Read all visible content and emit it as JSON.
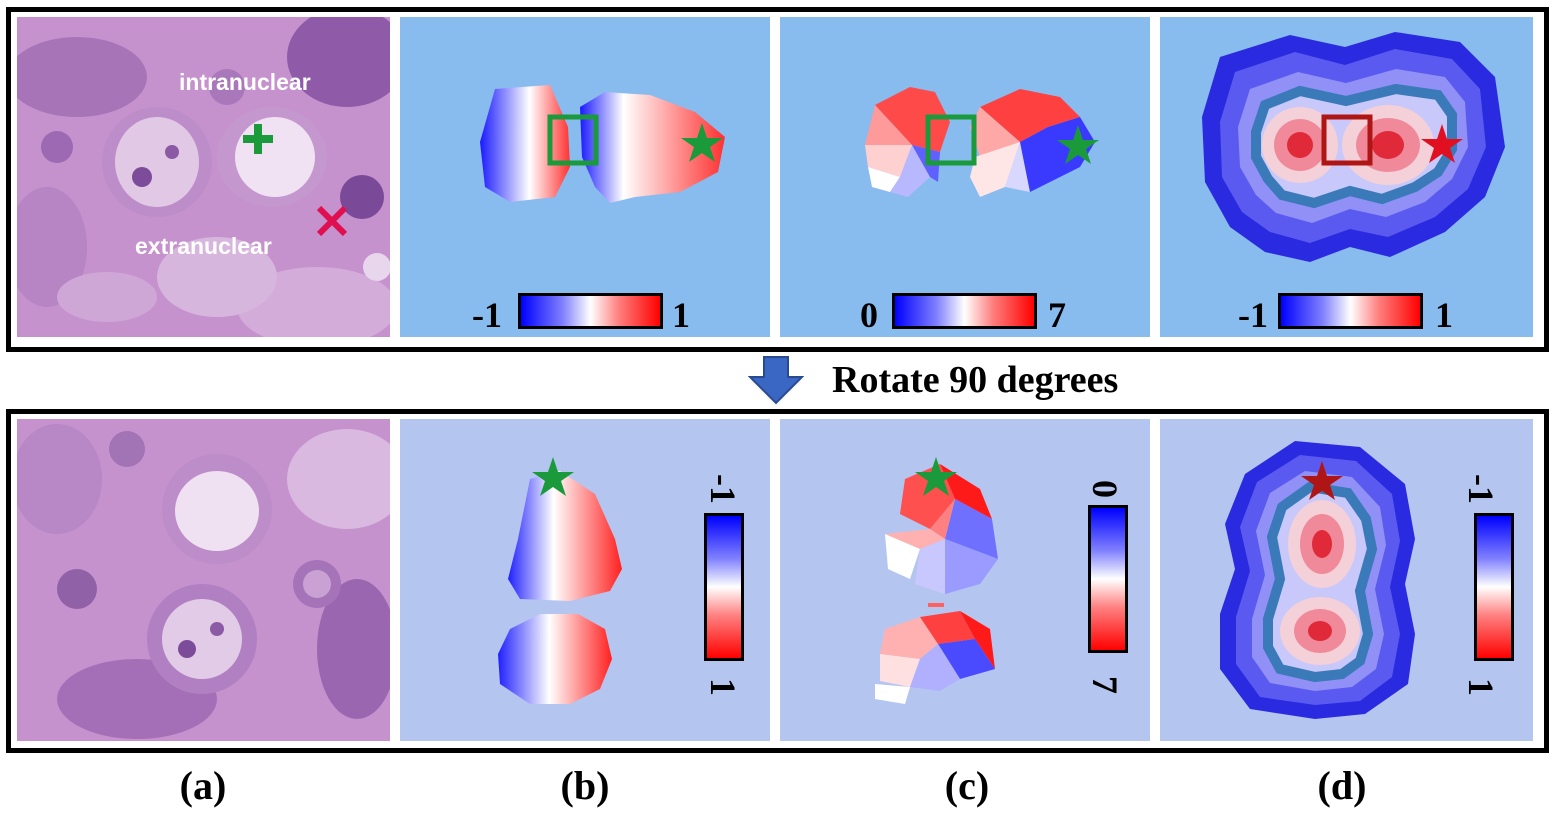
{
  "overlay": {
    "intranuclear": "intranuclear",
    "extranuclear": "extranuclear"
  },
  "top_row": {
    "b_colorbar": {
      "min": "-1",
      "max": "1"
    },
    "c_colorbar": {
      "min": "0",
      "max": "7"
    },
    "d_colorbar": {
      "min": "-1",
      "max": "1"
    }
  },
  "rotation": {
    "label": "Rotate 90 degrees"
  },
  "bottom_row": {
    "b_colorbar": {
      "min": "-1",
      "max": "1"
    },
    "c_colorbar": {
      "min": "0",
      "max": "7"
    },
    "d_colorbar": {
      "min": "-1",
      "max": "1"
    }
  },
  "panel_labels": [
    "(a)",
    "(b)",
    "(c)",
    "(d)"
  ],
  "colors": {
    "background_top": "#88bbee",
    "background_bottom": "#b4c6f0",
    "marker_green": "#1a9a3a",
    "marker_red": "#e01020",
    "marker_darkred": "#b01515",
    "arrow_blue": "#3a66c4"
  }
}
